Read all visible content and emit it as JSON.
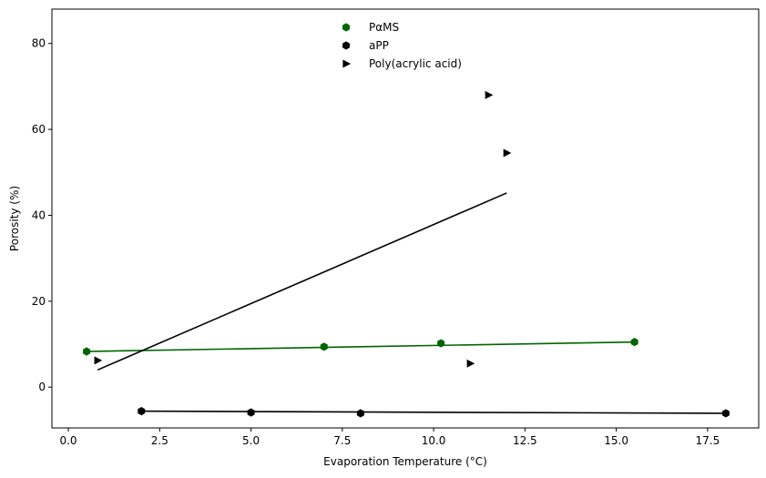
{
  "chart_data": {
    "type": "scatter",
    "title": "",
    "xlabel": "Evaporation Temperature (°C)",
    "ylabel": "Porosity (%)",
    "xlim": [
      -0.45,
      18.9
    ],
    "ylim": [
      -9.5,
      88
    ],
    "x_ticks": [
      0.0,
      2.5,
      5.0,
      7.5,
      10.0,
      12.5,
      15.0,
      17.5
    ],
    "x_tick_labels": [
      "0.0",
      "2.5",
      "5.0",
      "7.5",
      "10.0",
      "12.5",
      "15.0",
      "17.5"
    ],
    "y_ticks": [
      0,
      20,
      40,
      60,
      80
    ],
    "y_tick_labels": [
      "0",
      "20",
      "40",
      "60",
      "80"
    ],
    "grid": false,
    "legend_position": "upper-center",
    "series": [
      {
        "name": "PαMS",
        "marker": "hexagon",
        "color": "#006400",
        "points": [
          [
            0.5,
            8.3
          ],
          [
            7.0,
            9.4
          ],
          [
            10.2,
            10.2
          ],
          [
            15.5,
            10.5
          ]
        ],
        "fit_line": [
          [
            0.5,
            8.3
          ],
          [
            15.5,
            10.5
          ]
        ]
      },
      {
        "name": "aPP",
        "marker": "hexagon",
        "color": "#000000",
        "points": [
          [
            2.0,
            -5.6
          ],
          [
            5.0,
            -5.9
          ],
          [
            8.0,
            -6.1
          ],
          [
            18.0,
            -6.1
          ]
        ],
        "fit_line": [
          [
            2.0,
            -5.6
          ],
          [
            18.0,
            -6.1
          ]
        ]
      },
      {
        "name": "Poly(acrylic acid)",
        "marker": "triangle-right",
        "color": "#000000",
        "points": [
          [
            0.8,
            6.2
          ],
          [
            11.0,
            5.5
          ],
          [
            11.5,
            68.0
          ],
          [
            12.0,
            54.5
          ]
        ],
        "fit_line": [
          [
            0.8,
            4.0
          ],
          [
            12.0,
            45.2
          ]
        ]
      }
    ]
  }
}
